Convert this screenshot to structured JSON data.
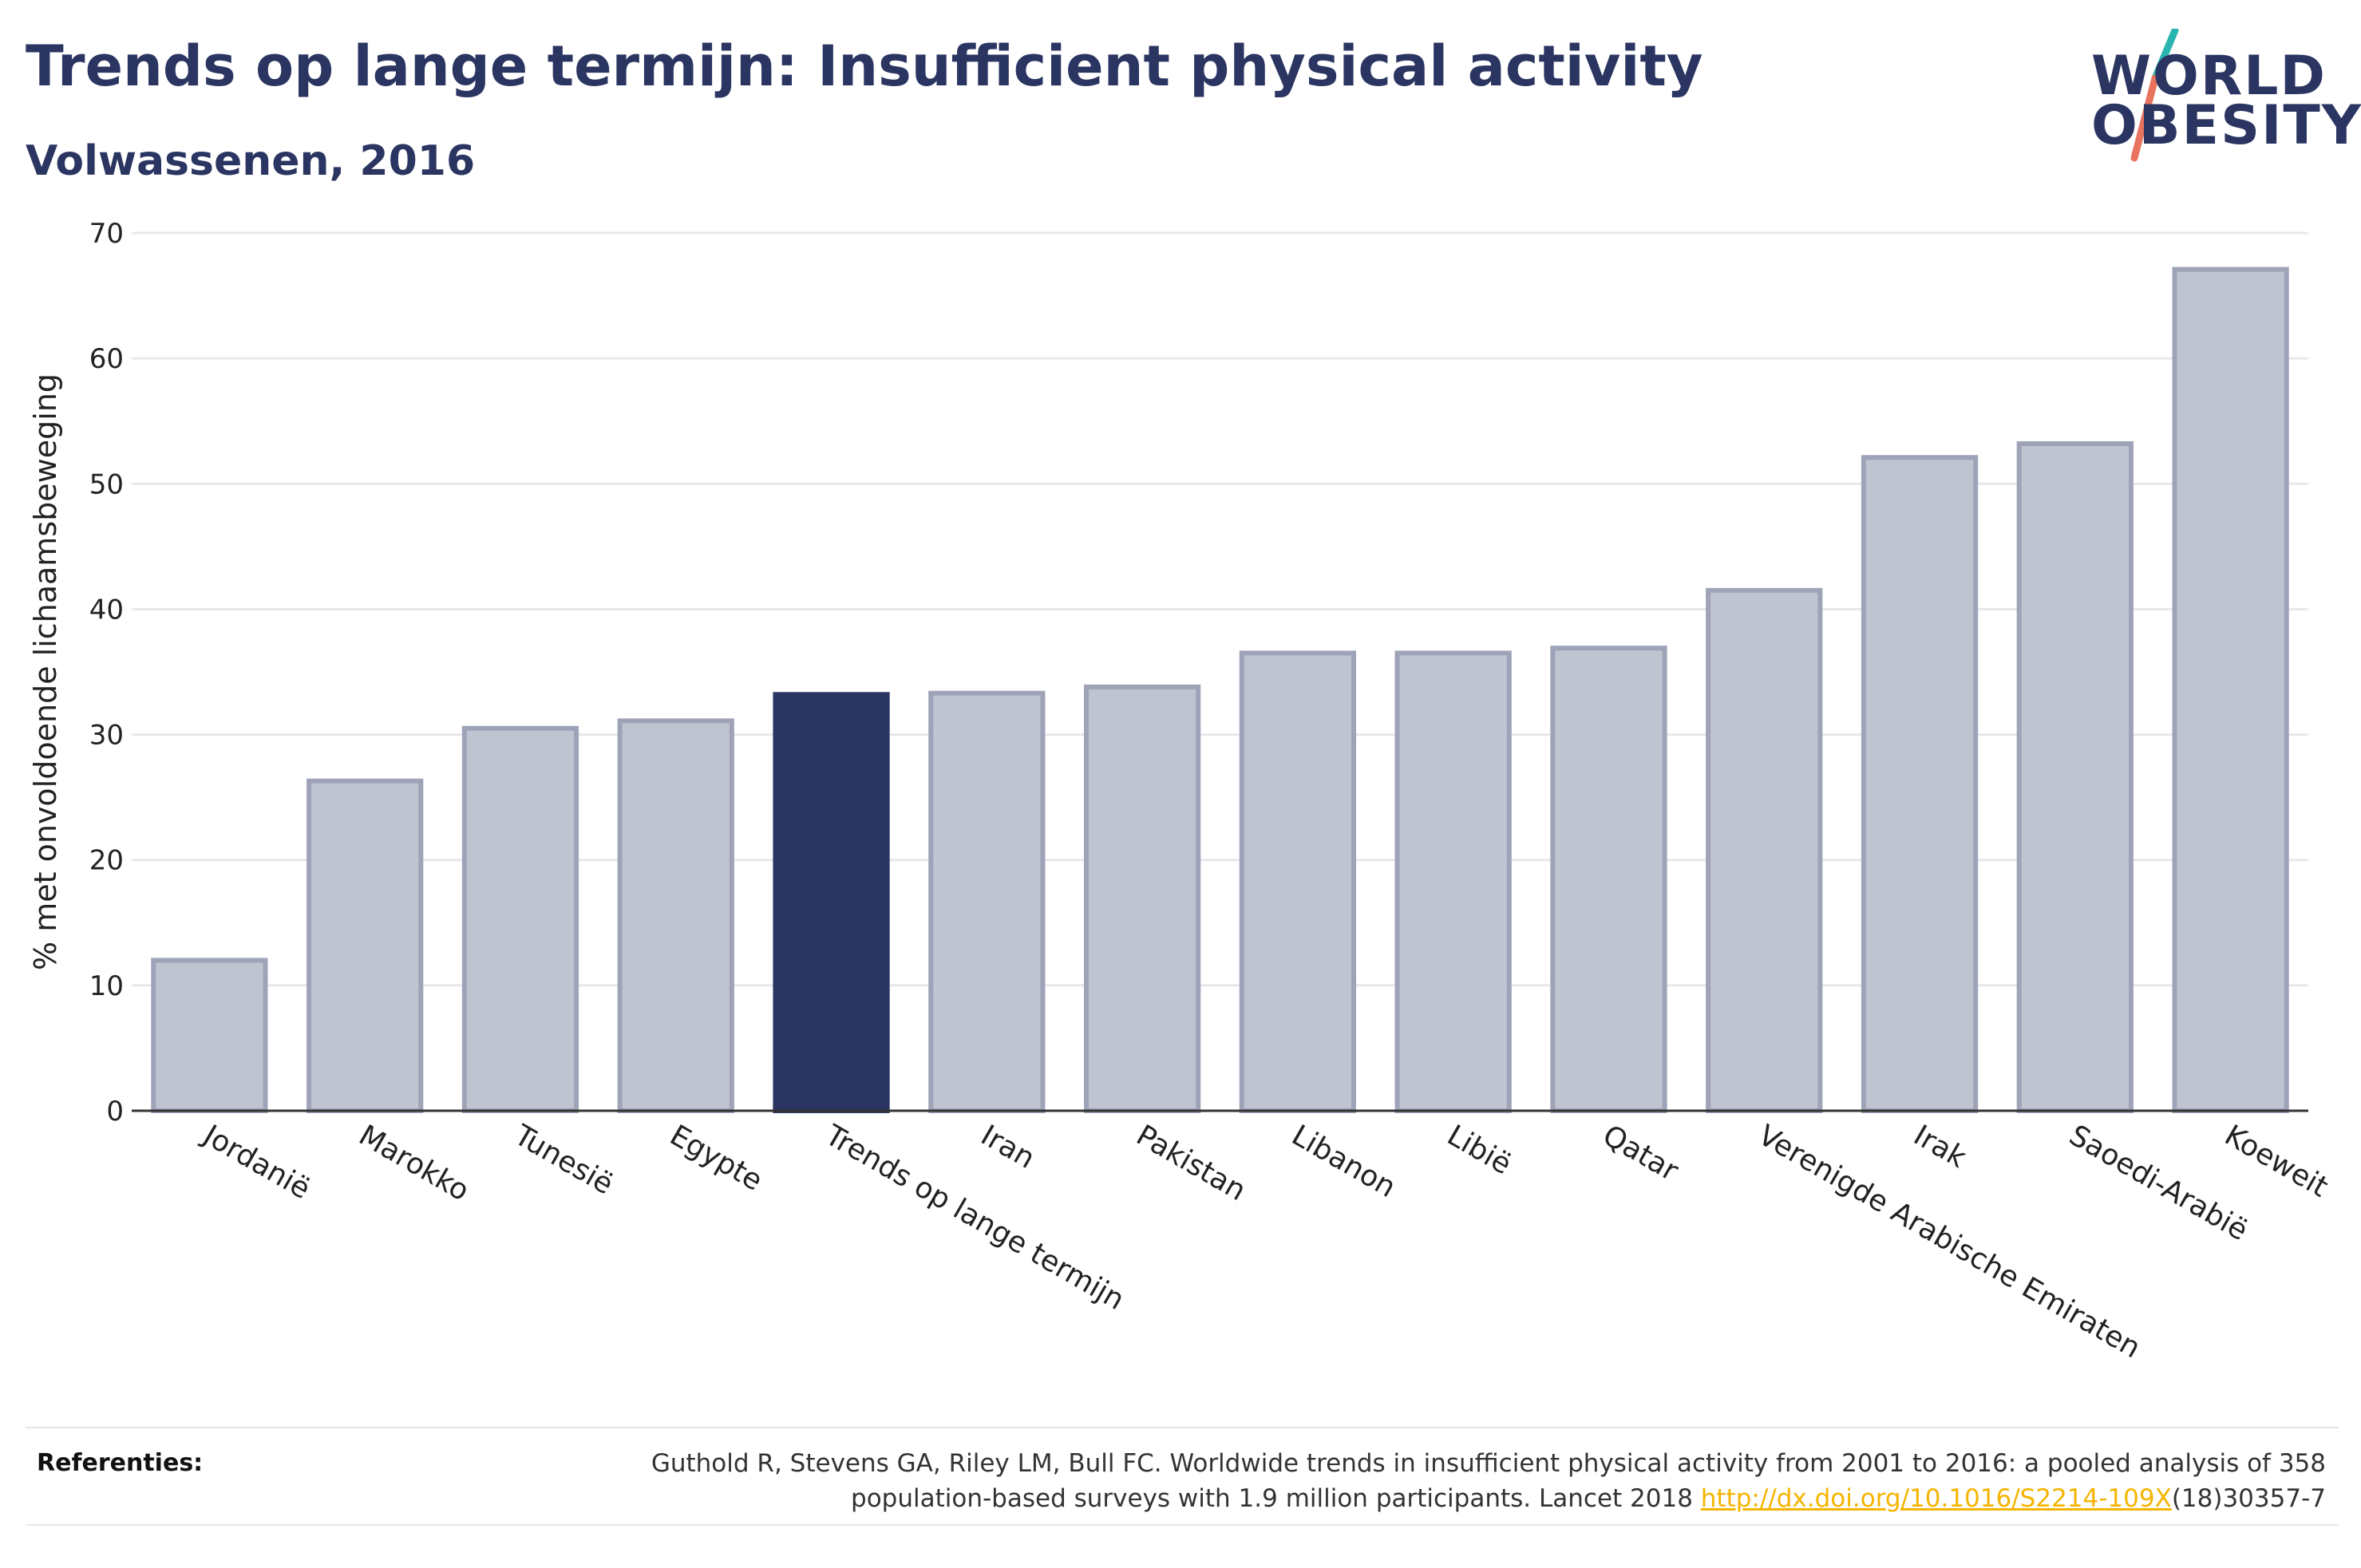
{
  "header": {
    "title": "Trends op lange termijn: Insufficient physical activity",
    "subtitle": "Volwassenen, 2016"
  },
  "logo": {
    "line1": "WORLD",
    "line2": "OBESITY",
    "accent_colors": [
      "#2bb5b0",
      "#e8735e"
    ]
  },
  "chart_data": {
    "type": "bar",
    "title": "Trends op lange termijn: Insufficient physical activity",
    "subtitle": "Volwassenen, 2016",
    "xlabel": "",
    "ylabel": "% met onvoldoende lichaamsbeweging",
    "ylim": [
      0,
      70
    ],
    "yticks": [
      0,
      10,
      20,
      30,
      40,
      50,
      60,
      70
    ],
    "grid": true,
    "categories": [
      "Jordanië",
      "Marokko",
      "Tunesië",
      "Egypte",
      "Trends op lange termijn",
      "Iran",
      "Pakistan",
      "Libanon",
      "Libië",
      "Qatar",
      "Verenigde Arabische Emiraten",
      "Irak",
      "Saoedi-Arabië",
      "Koeweit"
    ],
    "values": [
      12.0,
      26.3,
      30.5,
      31.1,
      33.2,
      33.3,
      33.8,
      36.5,
      36.5,
      36.9,
      41.5,
      52.1,
      53.2,
      67.1
    ],
    "highlight_index": 4,
    "colors": {
      "bar": "#c0c3d0",
      "bar_border": "#9ea3b8",
      "highlight": "#2b3561",
      "grid": "#e8e8ec",
      "axis": "#333333",
      "text": "#222222"
    }
  },
  "references": {
    "label": "Referenties:",
    "text_line1": "Guthold R, Stevens GA, Riley LM, Bull FC. Worldwide trends in insufficient physical activity from 2001 to 2016: a pooled analysis of 358",
    "text_line2_prefix": "population-based surveys with 1.9 million participants. Lancet 2018 ",
    "link": "http://dx.doi.org/10.1016/S2214-109X",
    "text_line2_suffix": "(18)30357-7"
  }
}
